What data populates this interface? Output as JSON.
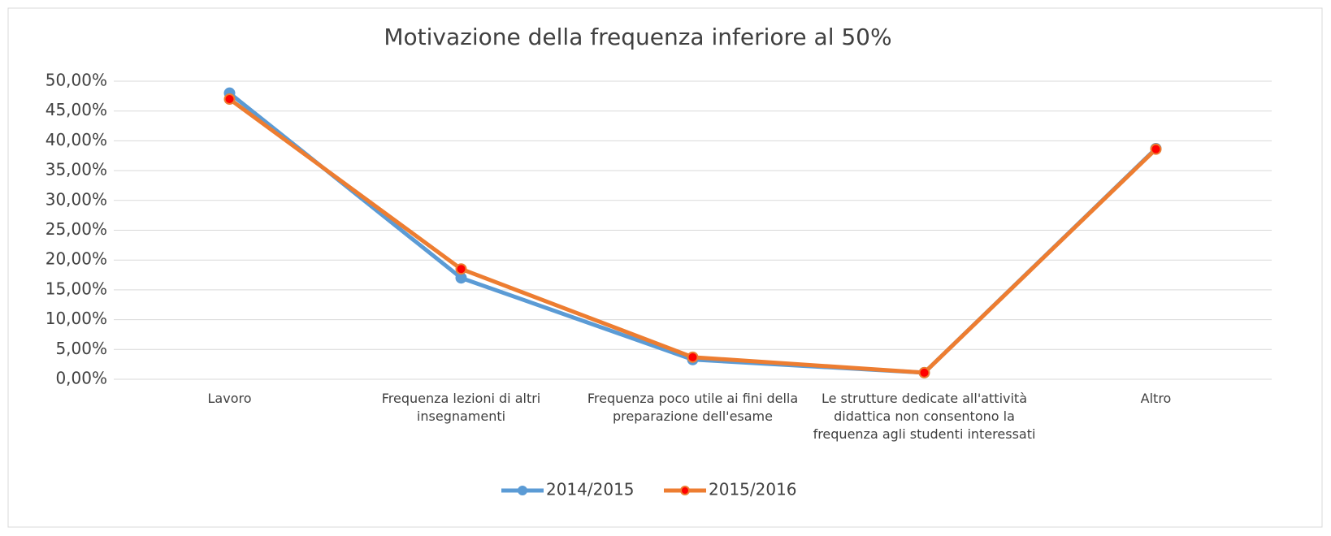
{
  "chart_data": {
    "type": "line",
    "title": "Motivazione della frequenza inferiore al 50%",
    "categories": [
      "Lavoro",
      "Frequenza lezioni di altri insegnamenti",
      "Frequenza poco utile ai fini della preparazione dell'esame",
      "Le strutture dedicate all'attività didattica non consentono la frequenza agli studenti interessati",
      "Altro"
    ],
    "series": [
      {
        "name": "2014/2015",
        "color": "#5b9bd5",
        "marker_color": "#5b9bd5",
        "values": [
          48,
          17,
          3.3,
          1.1,
          38.7
        ]
      },
      {
        "name": "2015/2016",
        "color": "#ed7d31",
        "marker_color": "#ff0000",
        "values": [
          47,
          18.5,
          3.7,
          1.1,
          38.6
        ]
      }
    ],
    "ylim": [
      0,
      50
    ],
    "yticks": [
      {
        "value": 0,
        "label": "0,00%"
      },
      {
        "value": 5,
        "label": "5,00%"
      },
      {
        "value": 10,
        "label": "10,00%"
      },
      {
        "value": 15,
        "label": "15,00%"
      },
      {
        "value": 20,
        "label": "20,00%"
      },
      {
        "value": 25,
        "label": "25,00%"
      },
      {
        "value": 30,
        "label": "30,00%"
      },
      {
        "value": 35,
        "label": "35,00%"
      },
      {
        "value": 40,
        "label": "40,00%"
      },
      {
        "value": 45,
        "label": "45,00%"
      },
      {
        "value": 50,
        "label": "50,00%"
      }
    ],
    "grid": true,
    "legend": "bottom"
  }
}
